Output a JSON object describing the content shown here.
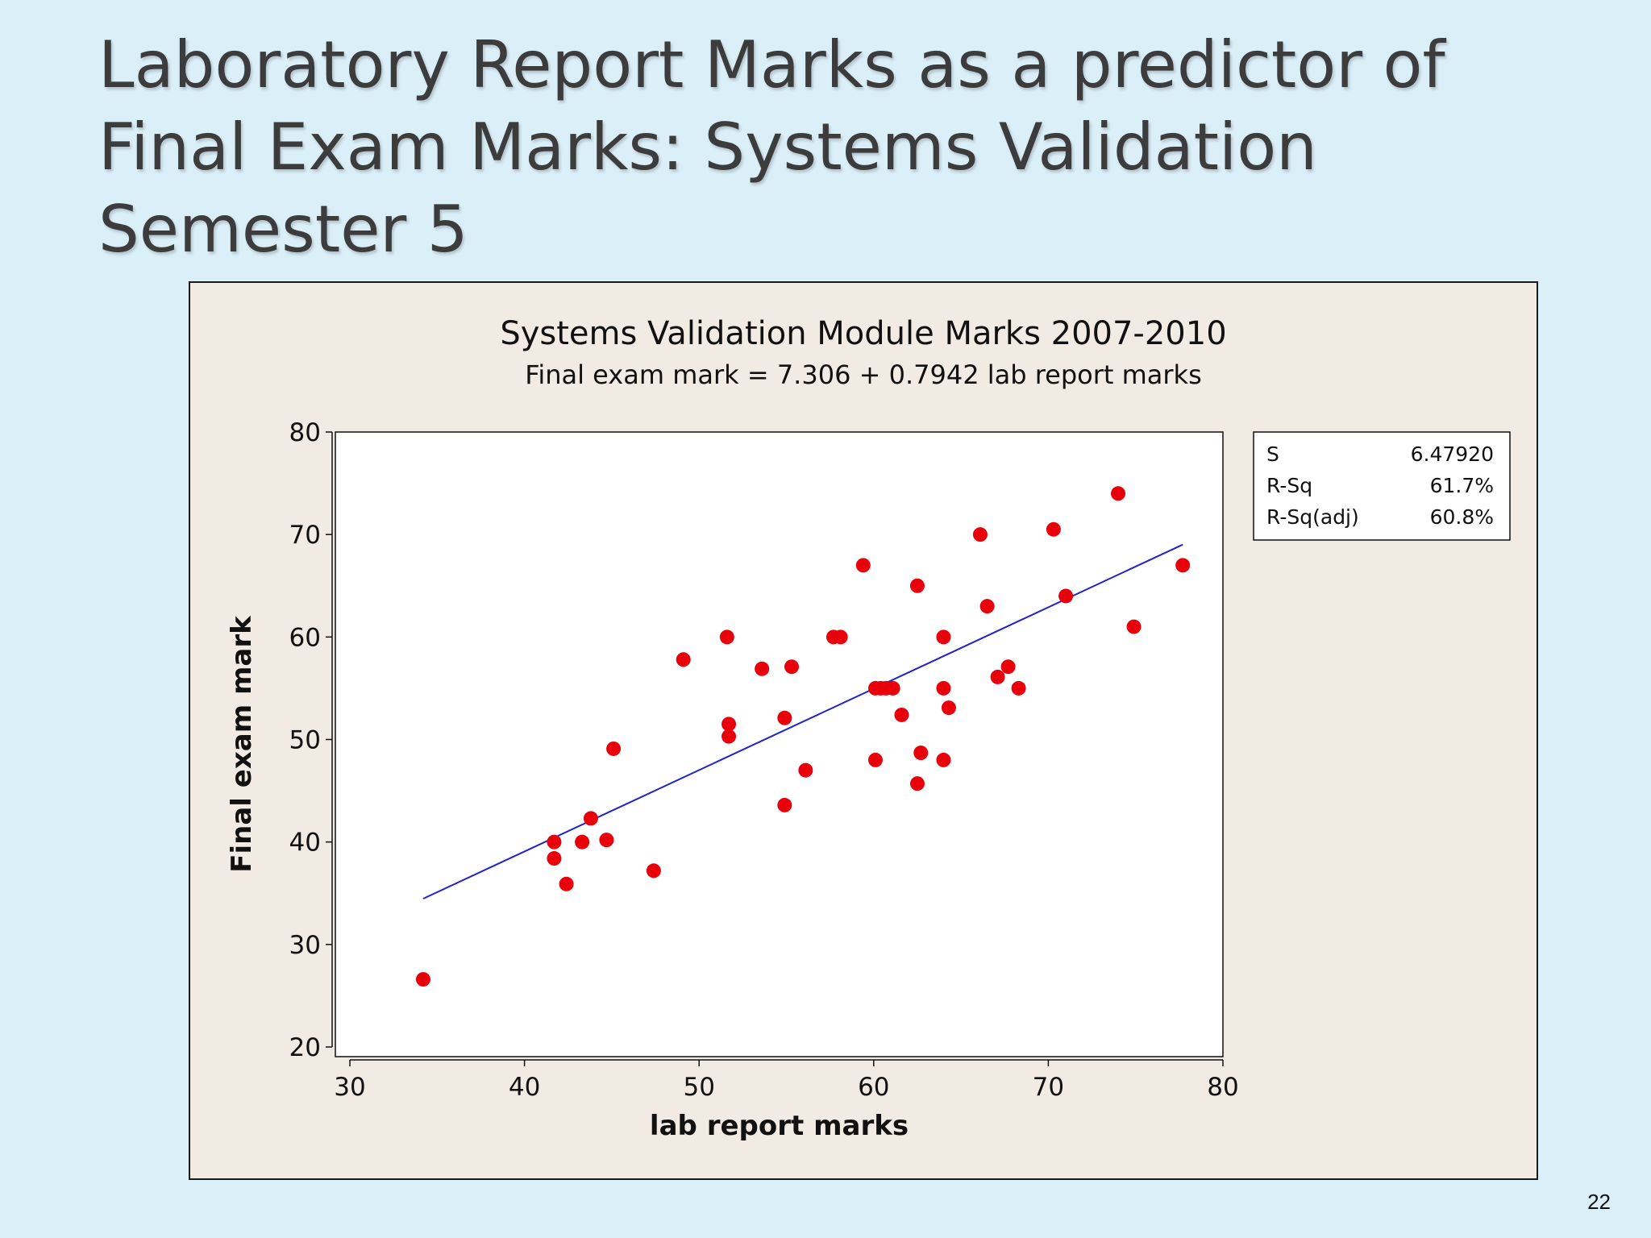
{
  "slide": {
    "title_lines": [
      "Laboratory Report Marks as a predictor of",
      "Final Exam Marks: Systems Validation",
      "Semester 5"
    ],
    "page_number": "22"
  },
  "chart_data": {
    "type": "scatter",
    "title": "Systems Validation Module Marks 2007-2010",
    "subtitle": "Final exam mark =  7.306 + 0.7942 lab report marks",
    "xlabel": "lab report marks",
    "ylabel": "Final exam mark",
    "xlim": [
      30,
      80
    ],
    "ylim": [
      20,
      80
    ],
    "xticks": [
      30,
      40,
      50,
      60,
      70,
      80
    ],
    "yticks": [
      20,
      30,
      40,
      50,
      60,
      70,
      80
    ],
    "grid": false,
    "point_color": "#e8000b",
    "line_color": "#2222cc",
    "plot_background": "#ffffff",
    "fit_line": {
      "intercept": 7.306,
      "slope": 0.7942,
      "x_range": [
        34.2,
        77.7
      ]
    },
    "stats": [
      {
        "label": "S",
        "value": "6.47920"
      },
      {
        "label": "R-Sq",
        "value": "61.7%"
      },
      {
        "label": "R-Sq(adj)",
        "value": "60.8%"
      }
    ],
    "points": [
      [
        34.2,
        26.6
      ],
      [
        41.7,
        40.0
      ],
      [
        41.7,
        38.4
      ],
      [
        42.4,
        35.9
      ],
      [
        43.3,
        40.0
      ],
      [
        43.8,
        42.3
      ],
      [
        44.7,
        40.2
      ],
      [
        45.1,
        49.1
      ],
      [
        47.4,
        37.2
      ],
      [
        49.1,
        57.8
      ],
      [
        51.6,
        60.0
      ],
      [
        51.7,
        51.5
      ],
      [
        51.7,
        50.3
      ],
      [
        53.6,
        56.9
      ],
      [
        54.9,
        52.1
      ],
      [
        54.9,
        43.6
      ],
      [
        55.3,
        57.1
      ],
      [
        56.1,
        47.0
      ],
      [
        57.7,
        60.0
      ],
      [
        58.1,
        60.0
      ],
      [
        59.4,
        67.0
      ],
      [
        60.1,
        48.0
      ],
      [
        60.1,
        55.0
      ],
      [
        60.4,
        55.0
      ],
      [
        60.7,
        55.0
      ],
      [
        61.1,
        55.0
      ],
      [
        61.6,
        52.4
      ],
      [
        62.5,
        65.0
      ],
      [
        62.5,
        45.7
      ],
      [
        62.7,
        48.7
      ],
      [
        64.0,
        60.0
      ],
      [
        64.0,
        55.0
      ],
      [
        64.0,
        48.0
      ],
      [
        64.3,
        53.1
      ],
      [
        66.1,
        70.0
      ],
      [
        66.5,
        63.0
      ],
      [
        67.1,
        56.1
      ],
      [
        67.7,
        57.1
      ],
      [
        68.3,
        55.0
      ],
      [
        70.3,
        70.5
      ],
      [
        71.0,
        64.0
      ],
      [
        74.0,
        74.0
      ],
      [
        74.9,
        61.0
      ],
      [
        77.7,
        67.0
      ]
    ]
  }
}
